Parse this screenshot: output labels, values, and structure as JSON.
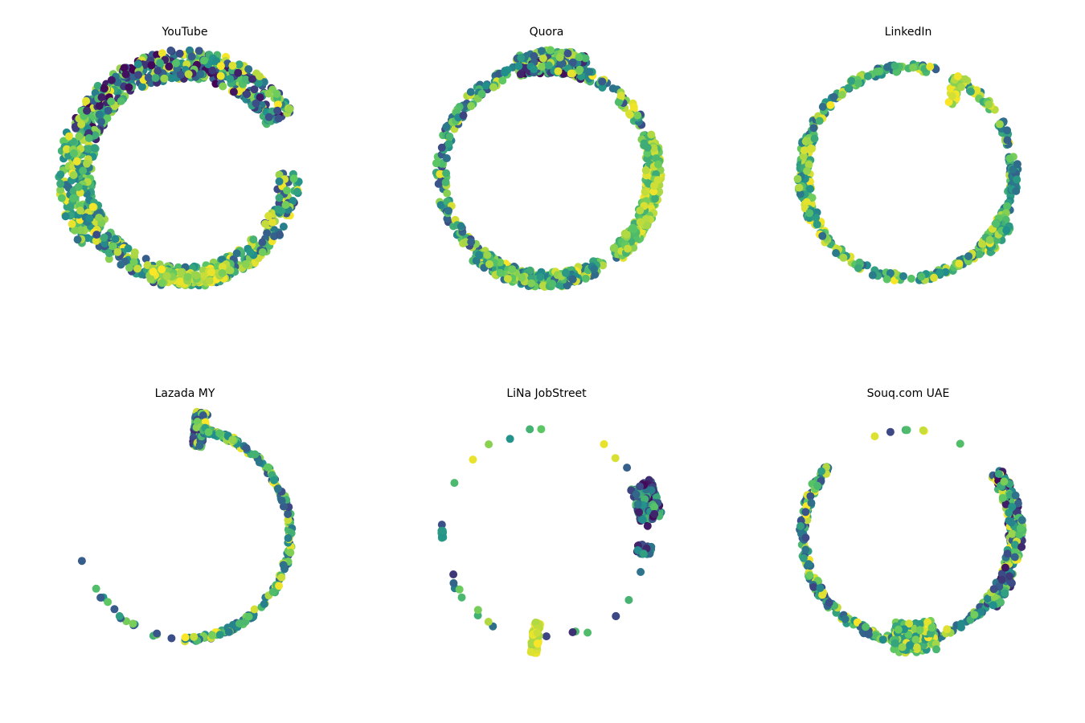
{
  "figure": {
    "titles": [
      "YouTube",
      "Quora",
      "LinkedIn",
      "Lazada MY",
      "LiNa JobStreet",
      "Souq.com UAE"
    ],
    "colormap": [
      "#440154",
      "#3b528b",
      "#21918c",
      "#5ec962",
      "#fde725"
    ]
  },
  "chart_data": [
    {
      "type": "scatter",
      "title": "YouTube",
      "projection": "polar",
      "grid": false,
      "axes_visible": false,
      "clusters": [
        {
          "theta": [
            30,
            160
          ],
          "r": [
            0.9,
            1.18
          ],
          "count": 520,
          "color": [
            0,
            1
          ]
        },
        {
          "theta": [
            160,
            215
          ],
          "r": [
            0.88,
            1.22
          ],
          "count": 220,
          "color": [
            0.35,
            1
          ]
        },
        {
          "theta": [
            215,
            360
          ],
          "r": [
            0.9,
            1.1
          ],
          "count": 320,
          "color": [
            0.2,
            1
          ]
        },
        {
          "theta": [
            250,
            295
          ],
          "r": [
            0.95,
            1.08
          ],
          "count": 110,
          "color": [
            0.75,
            1
          ]
        }
      ]
    },
    {
      "type": "scatter",
      "title": "Quora",
      "projection": "polar",
      "grid": false,
      "axes_visible": false,
      "clusters": [
        {
          "theta": [
            0,
            360
          ],
          "r": [
            0.96,
            1.06
          ],
          "count": 380,
          "color": [
            0.2,
            1
          ]
        },
        {
          "theta": [
            70,
            105
          ],
          "r": [
            0.95,
            1.18
          ],
          "count": 170,
          "color": [
            0,
            1
          ]
        },
        {
          "theta": [
            -50,
            20
          ],
          "r": [
            0.95,
            1.1
          ],
          "count": 230,
          "color": [
            0.6,
            1
          ]
        },
        {
          "theta": [
            230,
            300
          ],
          "r": [
            0.95,
            1.1
          ],
          "count": 230,
          "color": [
            0.3,
            1
          ]
        }
      ]
    },
    {
      "type": "scatter",
      "title": "LinkedIn",
      "projection": "polar",
      "grid": false,
      "axes_visible": false,
      "clusters": [
        {
          "theta": [
            75,
            390
          ],
          "r": [
            0.97,
            1.04
          ],
          "count": 330,
          "color": [
            0.3,
            1
          ]
        },
        {
          "theta": [
            35,
            65
          ],
          "r": [
            0.98,
            1.04
          ],
          "count": 30,
          "color": [
            0.4,
            1
          ]
        },
        {
          "theta": [
            160,
            210
          ],
          "r": [
            0.94,
            1.06
          ],
          "count": 90,
          "color": [
            0.4,
            1
          ]
        },
        {
          "theta": [
            -45,
            -25
          ],
          "r": [
            0.95,
            1.12
          ],
          "count": 60,
          "color": [
            0.5,
            1
          ]
        },
        {
          "theta": [
            -10,
            5
          ],
          "r": [
            0.98,
            1.05
          ],
          "count": 40,
          "color": [
            0.3,
            0.6
          ]
        },
        {
          "theta": [
            57,
            64
          ],
          "r": [
            0.78,
            1.05
          ],
          "count": 30,
          "color": [
            0.8,
            1
          ]
        }
      ]
    },
    {
      "type": "scatter",
      "title": "Lazada MY",
      "projection": "polar",
      "grid": false,
      "axes_visible": false,
      "clusters": [
        {
          "theta": [
            -90,
            80
          ],
          "r": [
            0.98,
            1.03
          ],
          "count": 190,
          "color": [
            0.2,
            1
          ]
        },
        {
          "theta": [
            190,
            265
          ],
          "r": [
            0.98,
            1.02
          ],
          "count": 16,
          "color": [
            0.2,
            0.8
          ]
        },
        {
          "theta": [
            79,
            85
          ],
          "r": [
            0.85,
            1.18
          ],
          "count": 160,
          "color": [
            0,
            1
          ]
        },
        {
          "theta": [
            60,
            80
          ],
          "r": [
            0.98,
            1.04
          ],
          "count": 40,
          "color": [
            0.3,
            1
          ]
        }
      ]
    },
    {
      "type": "scatter",
      "title": "LiNa JobStreet",
      "projection": "polar",
      "grid": false,
      "axes_visible": false,
      "clusters": [
        {
          "theta": [
            0,
            360
          ],
          "r": [
            0.97,
            1.03
          ],
          "count": 30,
          "color": [
            0,
            1
          ]
        },
        {
          "theta": [
            8,
            28
          ],
          "r": [
            0.9,
            1.12
          ],
          "count": 160,
          "color": [
            0,
            0.75
          ]
        },
        {
          "theta": [
            -12,
            -6
          ],
          "r": [
            0.88,
            1.02
          ],
          "count": 40,
          "color": [
            0.1,
            0.6
          ]
        },
        {
          "theta": [
            262,
            266
          ],
          "r": [
            0.85,
            1.15
          ],
          "count": 80,
          "color": [
            0.85,
            1
          ]
        },
        {
          "theta": [
            178,
            182
          ],
          "r": [
            0.99,
            1.01
          ],
          "count": 12,
          "color": [
            0.5,
            0.6
          ]
        }
      ]
    },
    {
      "type": "scatter",
      "title": "Souq.com UAE",
      "projection": "polar",
      "grid": false,
      "axes_visible": false,
      "clusters": [
        {
          "theta": [
            140,
            330
          ],
          "r": [
            0.97,
            1.04
          ],
          "count": 260,
          "color": [
            0.2,
            1
          ]
        },
        {
          "theta": [
            -40,
            35
          ],
          "r": [
            0.96,
            1.1
          ],
          "count": 220,
          "color": [
            0,
            1
          ]
        },
        {
          "theta": [
            60,
            110
          ],
          "r": [
            0.99,
            1.01
          ],
          "count": 7,
          "color": [
            0.1,
            1
          ]
        },
        {
          "theta": [
            262,
            285
          ],
          "r": [
            0.85,
            1.15
          ],
          "count": 160,
          "color": [
            0.5,
            1
          ]
        }
      ]
    }
  ]
}
